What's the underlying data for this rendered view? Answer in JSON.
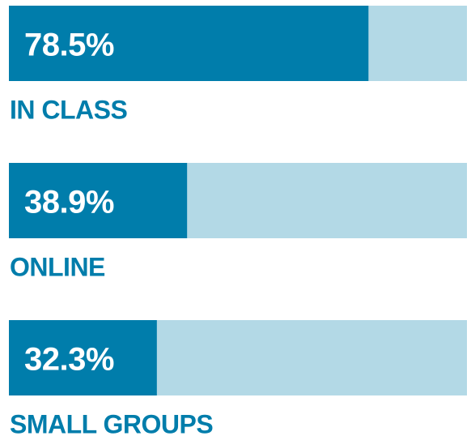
{
  "chart_data": {
    "type": "bar",
    "categories": [
      "IN CLASS",
      "ONLINE",
      "SMALL GROUPS"
    ],
    "values": [
      78.5,
      38.9,
      32.3
    ],
    "value_labels": [
      "78.5%",
      "38.9%",
      "32.3%"
    ],
    "color": "#007dab",
    "track_color": "#b3d9e6",
    "xlim": [
      0,
      100
    ]
  }
}
